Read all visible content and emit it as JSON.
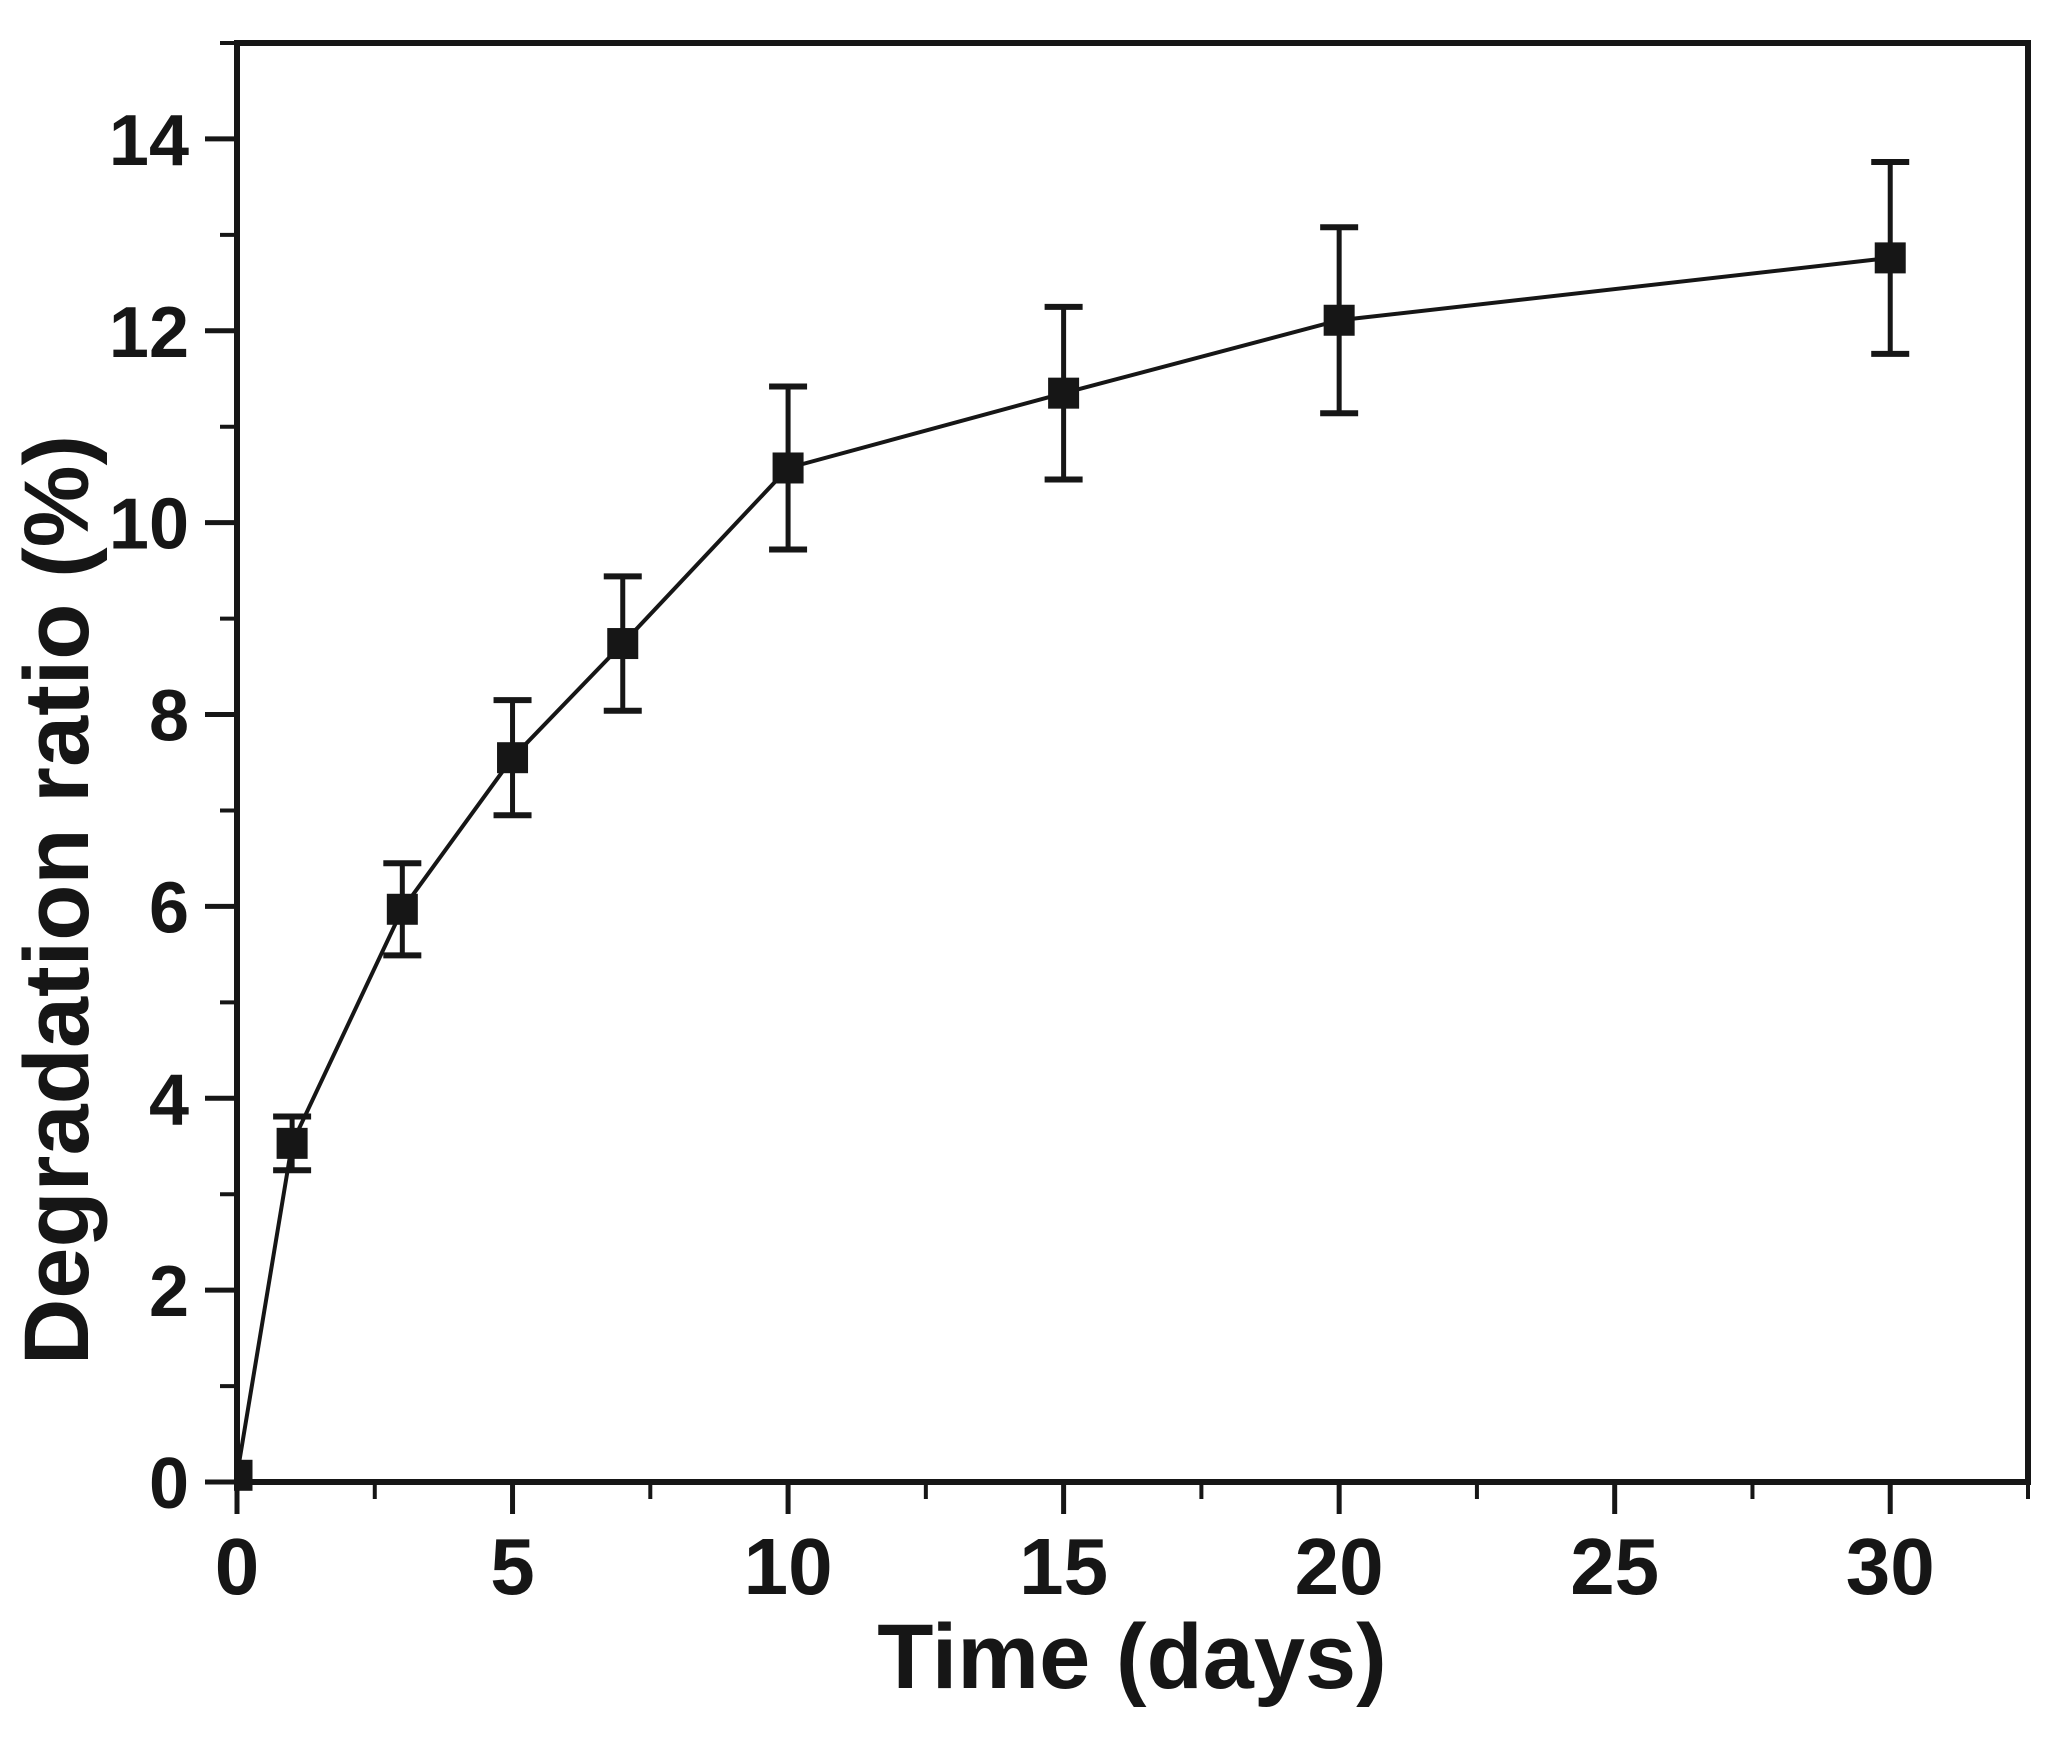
{
  "figure": {
    "background_color": "#ffffff",
    "ink_color": "#161616",
    "title": ""
  },
  "chart_data": {
    "type": "line",
    "title": "",
    "xlabel": "Time (days)",
    "ylabel": "Degradation ratio (%)",
    "x": [
      0,
      1,
      3,
      5,
      7,
      10,
      15,
      20,
      30
    ],
    "series": [
      {
        "name": "Degradation ratio",
        "values": [
          0.07,
          3.53,
          5.97,
          7.55,
          8.74,
          10.57,
          11.35,
          12.11,
          12.76
        ],
        "errors": [
          0,
          0.28,
          0.48,
          0.6,
          0.7,
          0.85,
          0.9,
          0.97,
          1.0
        ],
        "color": "#161616",
        "marker": "square"
      }
    ],
    "xlim": [
      0,
      32.5
    ],
    "ylim": [
      0,
      15
    ],
    "x_major_ticks": [
      0,
      5,
      10,
      15,
      20,
      25,
      30
    ],
    "x_minor_step": 2.5,
    "y_major_ticks": [
      0,
      2,
      4,
      6,
      8,
      10,
      12,
      14
    ],
    "y_minor_step": 1,
    "grid": false,
    "legend_position": "none",
    "error_bars": "vertical-with-caps"
  }
}
